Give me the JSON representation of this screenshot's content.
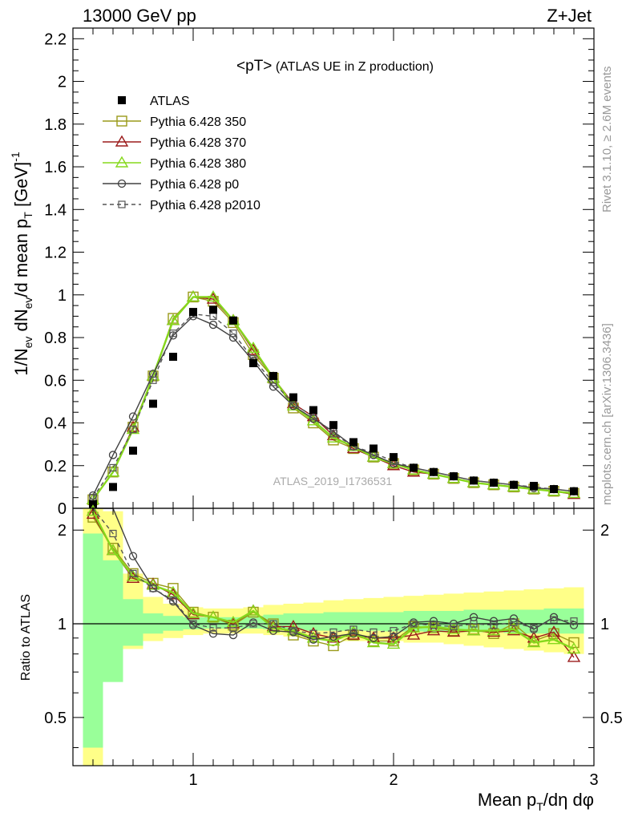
{
  "header": {
    "left": "13000 GeV pp",
    "right": "Z+Jet"
  },
  "side": {
    "rivet": "Rivet 3.1.10, ≥ 2.6M events",
    "mcplots": "mcplots.cern.ch [arXiv:1306.3436]"
  },
  "main": {
    "title_a": "<pT>",
    "title_b": " (ATLAS UE in Z production)",
    "watermark": "ATLAS_2019_I1736531",
    "ylabel": "1/N",
    "ylabel_sub1": "ev",
    "ylabel_mid": " dN",
    "ylabel_sub2": "ev",
    "ylabel_mid2": "/d mean p",
    "ylabel_sub3": "T",
    "ylabel_end": " [GeV]",
    "ylabel_sup": "-1"
  },
  "ratio": {
    "ylabel": "Ratio to ATLAS"
  },
  "xaxis": {
    "label": "Mean p",
    "label_sub": "T",
    "label_end": "/dη dφ"
  },
  "legend": [
    {
      "label": "ATLAS",
      "color": "#000000",
      "marker": "filled-square",
      "dash": false
    },
    {
      "label": "Pythia 6.428 350",
      "color": "#9a9a1a",
      "marker": "open-square",
      "dash": false
    },
    {
      "label": "Pythia 6.428 370",
      "color": "#9b1b1b",
      "marker": "open-triangle",
      "dash": false
    },
    {
      "label": "Pythia 6.428 380",
      "color": "#86d81c",
      "marker": "open-triangle",
      "dash": false
    },
    {
      "label": "Pythia 6.428 p0",
      "color": "#404040",
      "marker": "open-circle",
      "dash": false
    },
    {
      "label": "Pythia 6.428 p2010",
      "color": "#555555",
      "marker": "open-square-small",
      "dash": true
    }
  ],
  "chart_data": {
    "type": "line",
    "x": [
      0.5,
      0.6,
      0.7,
      0.8,
      0.9,
      1.0,
      1.1,
      1.2,
      1.3,
      1.4,
      1.5,
      1.6,
      1.7,
      1.8,
      1.9,
      2.0,
      2.1,
      2.2,
      2.3,
      2.4,
      2.5,
      2.6,
      2.7,
      2.8,
      2.9
    ],
    "xlim": [
      0.4,
      3.0
    ],
    "ylim": [
      0,
      2.25
    ],
    "yticks": [
      0,
      0.2,
      0.4,
      0.6,
      0.8,
      1,
      1.2,
      1.4,
      1.6,
      1.8,
      2,
      2.2
    ],
    "xticks": [
      1,
      2,
      3
    ],
    "ratio_ylim": [
      0.35,
      2.35
    ],
    "ratio_yticks": [
      0.5,
      1,
      2
    ],
    "ratio_log": true,
    "series": [
      {
        "name": "ATLAS",
        "values": [
          0.02,
          0.1,
          0.27,
          0.49,
          0.71,
          0.92,
          0.93,
          0.88,
          0.68,
          0.62,
          0.52,
          0.46,
          0.39,
          0.31,
          0.28,
          0.24,
          0.19,
          0.17,
          0.15,
          0.13,
          0.12,
          0.11,
          0.105,
          0.09,
          0.08
        ],
        "band_inner": [
          [
            0.4,
            1.95
          ],
          [
            0.65,
            1.6
          ],
          [
            0.85,
            1.2
          ],
          [
            0.93,
            1.08
          ],
          [
            0.95,
            1.06
          ],
          [
            0.96,
            1.05
          ],
          [
            0.965,
            1.05
          ],
          [
            0.965,
            1.05
          ],
          [
            0.965,
            1.06
          ],
          [
            0.96,
            1.07
          ],
          [
            0.955,
            1.08
          ],
          [
            0.95,
            1.08
          ],
          [
            0.95,
            1.09
          ],
          [
            0.95,
            1.09
          ],
          [
            0.95,
            1.09
          ],
          [
            0.945,
            1.09
          ],
          [
            0.945,
            1.1
          ],
          [
            0.94,
            1.1
          ],
          [
            0.94,
            1.1
          ],
          [
            0.94,
            1.11
          ],
          [
            0.94,
            1.11
          ],
          [
            0.935,
            1.11
          ],
          [
            0.93,
            1.11
          ],
          [
            0.93,
            1.12
          ],
          [
            0.93,
            1.12
          ]
        ],
        "band_outer": [
          [
            0.35,
            2.35
          ],
          [
            0.66,
            2.3
          ],
          [
            0.83,
            1.45
          ],
          [
            0.88,
            1.22
          ],
          [
            0.9,
            1.16
          ],
          [
            0.92,
            1.13
          ],
          [
            0.93,
            1.12
          ],
          [
            0.93,
            1.12
          ],
          [
            0.93,
            1.13
          ],
          [
            0.92,
            1.15
          ],
          [
            0.91,
            1.16
          ],
          [
            0.9,
            1.17
          ],
          [
            0.89,
            1.19
          ],
          [
            0.88,
            1.2
          ],
          [
            0.88,
            1.21
          ],
          [
            0.88,
            1.22
          ],
          [
            0.87,
            1.23
          ],
          [
            0.87,
            1.24
          ],
          [
            0.86,
            1.25
          ],
          [
            0.85,
            1.26
          ],
          [
            0.84,
            1.27
          ],
          [
            0.83,
            1.28
          ],
          [
            0.82,
            1.29
          ],
          [
            0.81,
            1.3
          ],
          [
            0.8,
            1.31
          ]
        ]
      },
      {
        "name": "Pythia 6.428 350",
        "values": [
          0.04,
          0.17,
          0.38,
          0.62,
          0.89,
          0.99,
          0.97,
          0.87,
          0.72,
          0.61,
          0.47,
          0.4,
          0.32,
          0.28,
          0.24,
          0.21,
          0.18,
          0.16,
          0.14,
          0.12,
          0.11,
          0.1,
          0.09,
          0.08,
          0.07
        ],
        "ratio": [
          2.2,
          1.75,
          1.45,
          1.35,
          1.3,
          1.09,
          1.05,
          0.99,
          1.09,
          1.0,
          0.92,
          0.88,
          0.85,
          0.92,
          0.88,
          0.88,
          0.98,
          0.97,
          0.95,
          0.96,
          0.93,
          1.0,
          0.88,
          0.93,
          0.87
        ]
      },
      {
        "name": "Pythia 6.428 370",
        "values": [
          0.04,
          0.17,
          0.38,
          0.62,
          0.88,
          0.99,
          0.98,
          0.88,
          0.74,
          0.61,
          0.49,
          0.43,
          0.34,
          0.28,
          0.24,
          0.2,
          0.17,
          0.16,
          0.14,
          0.12,
          0.11,
          0.1,
          0.09,
          0.08,
          0.065
        ],
        "ratio": [
          2.25,
          1.72,
          1.4,
          1.34,
          1.24,
          1.07,
          1.05,
          1.0,
          1.1,
          0.98,
          0.98,
          0.93,
          0.9,
          0.92,
          0.9,
          0.9,
          0.92,
          0.95,
          0.94,
          0.95,
          0.94,
          0.95,
          0.9,
          0.94,
          0.78
        ]
      },
      {
        "name": "Pythia 6.428 380",
        "values": [
          0.04,
          0.17,
          0.37,
          0.62,
          0.88,
          0.99,
          0.99,
          0.88,
          0.75,
          0.61,
          0.48,
          0.41,
          0.33,
          0.29,
          0.24,
          0.21,
          0.18,
          0.16,
          0.14,
          0.12,
          0.11,
          0.1,
          0.09,
          0.08,
          0.07
        ],
        "ratio": [
          2.3,
          1.72,
          1.42,
          1.33,
          1.26,
          1.08,
          1.05,
          1.01,
          1.1,
          0.97,
          0.95,
          0.9,
          0.88,
          0.94,
          0.87,
          0.86,
          0.97,
          0.98,
          0.96,
          0.95,
          0.95,
          0.96,
          0.87,
          0.89,
          0.83
        ]
      },
      {
        "name": "Pythia 6.428 p0",
        "values": [
          0.06,
          0.25,
          0.43,
          0.63,
          0.81,
          0.9,
          0.86,
          0.8,
          0.69,
          0.57,
          0.48,
          0.42,
          0.36,
          0.29,
          0.25,
          0.21,
          0.19,
          0.17,
          0.15,
          0.13,
          0.12,
          0.11,
          0.095,
          0.09,
          0.08
        ],
        "ratio": [
          3.0,
          2.5,
          1.65,
          1.3,
          1.18,
          0.99,
          0.93,
          0.92,
          1.01,
          0.95,
          0.94,
          0.89,
          0.91,
          0.93,
          0.9,
          0.91,
          1.01,
          1.02,
          1.0,
          1.05,
          1.02,
          1.04,
          0.96,
          1.05,
          0.99
        ]
      },
      {
        "name": "Pythia 6.428 p2010",
        "values": [
          0.05,
          0.19,
          0.37,
          0.6,
          0.82,
          0.91,
          0.9,
          0.82,
          0.7,
          0.59,
          0.49,
          0.43,
          0.35,
          0.29,
          0.26,
          0.22,
          0.19,
          0.17,
          0.15,
          0.13,
          0.12,
          0.11,
          0.1,
          0.09,
          0.08
        ],
        "ratio": [
          2.6,
          1.95,
          1.45,
          1.3,
          1.19,
          1.0,
          0.97,
          0.97,
          1.0,
          1.0,
          0.95,
          0.93,
          0.94,
          0.96,
          0.94,
          0.95,
          1.0,
          0.99,
          0.98,
          1.0,
          0.99,
          1.01,
          0.97,
          1.03,
          1.02
        ]
      }
    ]
  }
}
